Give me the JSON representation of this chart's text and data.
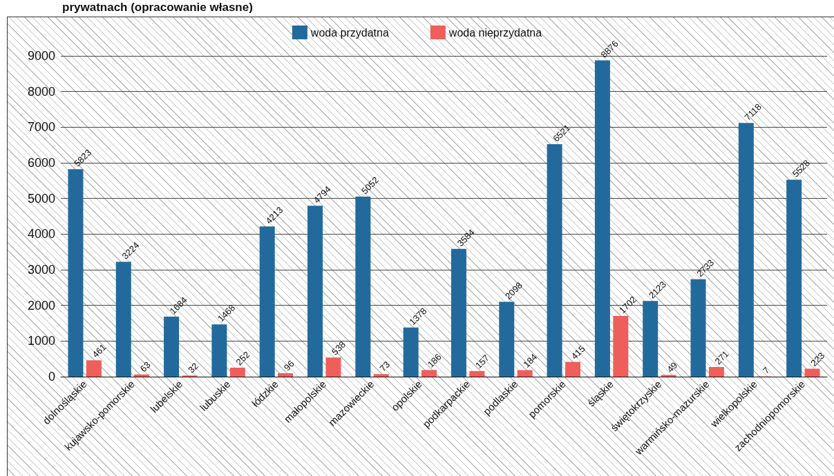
{
  "chart_data": {
    "type": "bar",
    "title": "prywatnach (opracowanie własne)",
    "categories": [
      "dolnośląskie",
      "kujawsko-pomorskie",
      "lubelskie",
      "lubuskie",
      "łódzkie",
      "małopolskie",
      "mazowieckie",
      "opolskie",
      "podkarpackie",
      "podlaskie",
      "pomorskie",
      "śląskie",
      "świętokrzyskie",
      "warmińsko-mazurskie",
      "wielkopolskie",
      "zachodniopomorskie"
    ],
    "series": [
      {
        "name": "woda przydatna",
        "color": "#236a9c",
        "values": [
          5823,
          3224,
          1684,
          1468,
          4213,
          4794,
          5052,
          1378,
          3584,
          2098,
          6521,
          8876,
          2123,
          2733,
          7118,
          5528
        ]
      },
      {
        "name": "woda nieprzydatna",
        "color": "#ee5f5b",
        "values": [
          461,
          63,
          32,
          252,
          96,
          538,
          73,
          186,
          157,
          184,
          415,
          1702,
          49,
          271,
          7,
          223
        ]
      }
    ],
    "ylim": [
      0,
      9000
    ],
    "yticks": [
      0,
      1000,
      2000,
      3000,
      4000,
      5000,
      6000,
      7000,
      8000,
      9000
    ],
    "grid": "y",
    "legend": "top",
    "data_labels": true
  }
}
